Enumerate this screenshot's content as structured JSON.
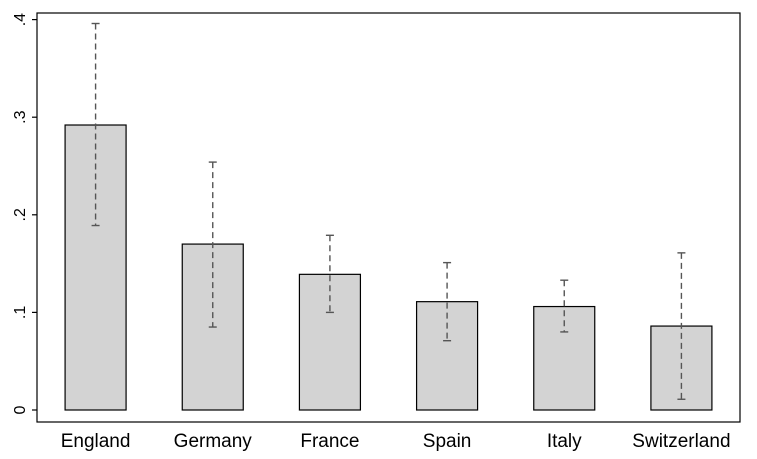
{
  "chart_data": {
    "type": "bar",
    "categories": [
      "England",
      "Germany",
      "France",
      "Spain",
      "Italy",
      "Switzerland"
    ],
    "values": [
      0.292,
      0.17,
      0.139,
      0.111,
      0.106,
      0.086
    ],
    "error_low": [
      0.189,
      0.085,
      0.1,
      0.071,
      0.08,
      0.011
    ],
    "error_high": [
      0.396,
      0.254,
      0.179,
      0.151,
      0.133,
      0.161
    ],
    "ylim": [
      0,
      0.405
    ],
    "yticks": [
      0,
      0.1,
      0.2,
      0.3,
      0.4
    ],
    "ytick_labels": [
      "0",
      ".1",
      ".2",
      ".3",
      ".4"
    ],
    "grid": false,
    "bar_color": "#d3d3d3",
    "bar_edge_color": "#000000",
    "error_bar_color": "#555555",
    "error_bar_style": "dashed"
  }
}
